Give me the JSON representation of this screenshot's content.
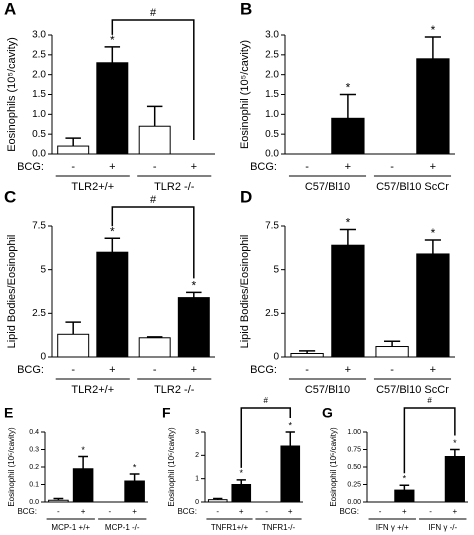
{
  "chart_data": [
    {
      "type": "bar",
      "label": "A",
      "ylabel": "Eosinophils (10⁵/cavity)",
      "ylim": [
        0,
        3
      ],
      "yticks": [
        {
          "value": 0,
          "label": "0.0"
        },
        0.5,
        {
          "value": 1,
          "label": "1.0"
        },
        1.5,
        {
          "value": 2,
          "label": "2.0"
        },
        2.5,
        {
          "value": 3,
          "label": "3.0"
        }
      ],
      "treatment_label": "BCG:",
      "categories": [
        "-",
        "+",
        "-",
        "+"
      ],
      "groups": [
        "TLR2+/+",
        "TLR2 -/-"
      ],
      "values": [
        0.2,
        2.3,
        0.7,
        0
      ],
      "errors": [
        0.2,
        0.4,
        0.5,
        null
      ],
      "colors": [
        "#ffffff",
        "#000000",
        "#ffffff",
        "#000000"
      ],
      "annotations": [
        "*",
        "#"
      ]
    },
    {
      "type": "bar",
      "label": "B",
      "ylabel": "Eosinophil (10⁵/cavity)",
      "ylim": [
        0,
        3
      ],
      "yticks": [
        {
          "value": 0,
          "label": "0.0"
        },
        0.5,
        {
          "value": 1,
          "label": "1.0"
        },
        1.5,
        {
          "value": 2,
          "label": "2.0"
        },
        2.5,
        {
          "value": 3,
          "label": "3.0"
        }
      ],
      "treatment_label": "BCG:",
      "categories": [
        "-",
        "+",
        "-",
        "+"
      ],
      "groups": [
        "C57/Bl10",
        "C57/Bl10 ScCr"
      ],
      "values": [
        0,
        0.9,
        0,
        2.4
      ],
      "errors": [
        null,
        0.6,
        null,
        0.55
      ],
      "colors": [
        "#ffffff",
        "#000000",
        "#ffffff",
        "#000000"
      ],
      "annotations": [
        "*",
        "*"
      ]
    },
    {
      "type": "bar",
      "label": "C",
      "ylabel": "Lipid Bodies/Eosinophil",
      "ylim": [
        0,
        7.5
      ],
      "yticks": [
        0,
        2.5,
        5,
        7.5
      ],
      "treatment_label": "BCG:",
      "categories": [
        "-",
        "+",
        "-",
        "+"
      ],
      "groups": [
        "TLR2+/+",
        "TLR2 -/-"
      ],
      "values": [
        1.3,
        6.0,
        1.1,
        3.4
      ],
      "errors": [
        0.7,
        0.8,
        0.05,
        0.3
      ],
      "colors": [
        "#ffffff",
        "#000000",
        "#ffffff",
        "#000000"
      ],
      "annotations": [
        "*",
        "*",
        "#"
      ]
    },
    {
      "type": "bar",
      "label": "D",
      "ylabel": "Lipid Bodies/Eosinophil",
      "ylim": [
        0,
        7.5
      ],
      "yticks": [
        0,
        2.5,
        5,
        7.5
      ],
      "treatment_label": "BCG:",
      "categories": [
        "-",
        "+",
        "-",
        "+"
      ],
      "groups": [
        "C57/Bl10",
        "C57/Bl10 ScCr"
      ],
      "values": [
        0.2,
        6.4,
        0.6,
        5.9
      ],
      "errors": [
        0.15,
        0.9,
        0.3,
        0.8
      ],
      "colors": [
        "#ffffff",
        "#000000",
        "#ffffff",
        "#000000"
      ],
      "annotations": [
        "*",
        "*"
      ]
    },
    {
      "type": "bar",
      "label": "E",
      "ylabel": "Eosinophil (10⁵/cavity)",
      "ylim": [
        0,
        0.4
      ],
      "yticks": [
        {
          "value": 0,
          "label": "0.0"
        },
        0.1,
        0.2,
        0.3,
        0.4
      ],
      "treatment_label": "BCG:",
      "categories": [
        "-",
        "+",
        "-",
        "+"
      ],
      "groups": [
        "MCP-1 +/+",
        "MCP-1 -/-"
      ],
      "values": [
        0.01,
        0.19,
        0,
        0.12
      ],
      "errors": [
        0.01,
        0.07,
        null,
        0.04
      ],
      "colors": [
        "#ffffff",
        "#000000",
        "#ffffff",
        "#000000"
      ],
      "annotations": [
        "*",
        "*"
      ]
    },
    {
      "type": "bar",
      "label": "F",
      "ylabel": "Eosinophil (10⁵/cavity)",
      "ylim": [
        0,
        3
      ],
      "yticks": [
        0,
        1,
        2,
        3
      ],
      "treatment_label": "BCG:",
      "categories": [
        "-",
        "+",
        "-",
        "+"
      ],
      "groups": [
        "TNFR1+/+",
        "TNFR1-/-"
      ],
      "values": [
        0.1,
        0.75,
        0,
        2.4
      ],
      "errors": [
        0.05,
        0.2,
        null,
        0.6
      ],
      "colors": [
        "#ffffff",
        "#000000",
        "#ffffff",
        "#000000"
      ],
      "annotations": [
        "*",
        "*",
        "#"
      ]
    },
    {
      "type": "bar",
      "label": "G",
      "ylabel": "Eosinophil (10⁵/cavity)",
      "ylim": [
        0,
        1
      ],
      "yticks": [
        {
          "value": 0,
          "label": "0.00"
        },
        0.25,
        {
          "value": 0.5,
          "label": "0.50"
        },
        0.75,
        {
          "value": 1,
          "label": "1.00"
        }
      ],
      "treatment_label": "BCG:",
      "categories": [
        "-",
        "+",
        "-",
        "+"
      ],
      "groups": [
        "IFN γ +/+",
        "IFN γ -/-"
      ],
      "values": [
        0,
        0.17,
        0,
        0.65
      ],
      "errors": [
        null,
        0.07,
        null,
        0.1
      ],
      "colors": [
        "#ffffff",
        "#000000",
        "#ffffff",
        "#000000"
      ],
      "annotations": [
        "*",
        "*",
        "#"
      ]
    }
  ]
}
